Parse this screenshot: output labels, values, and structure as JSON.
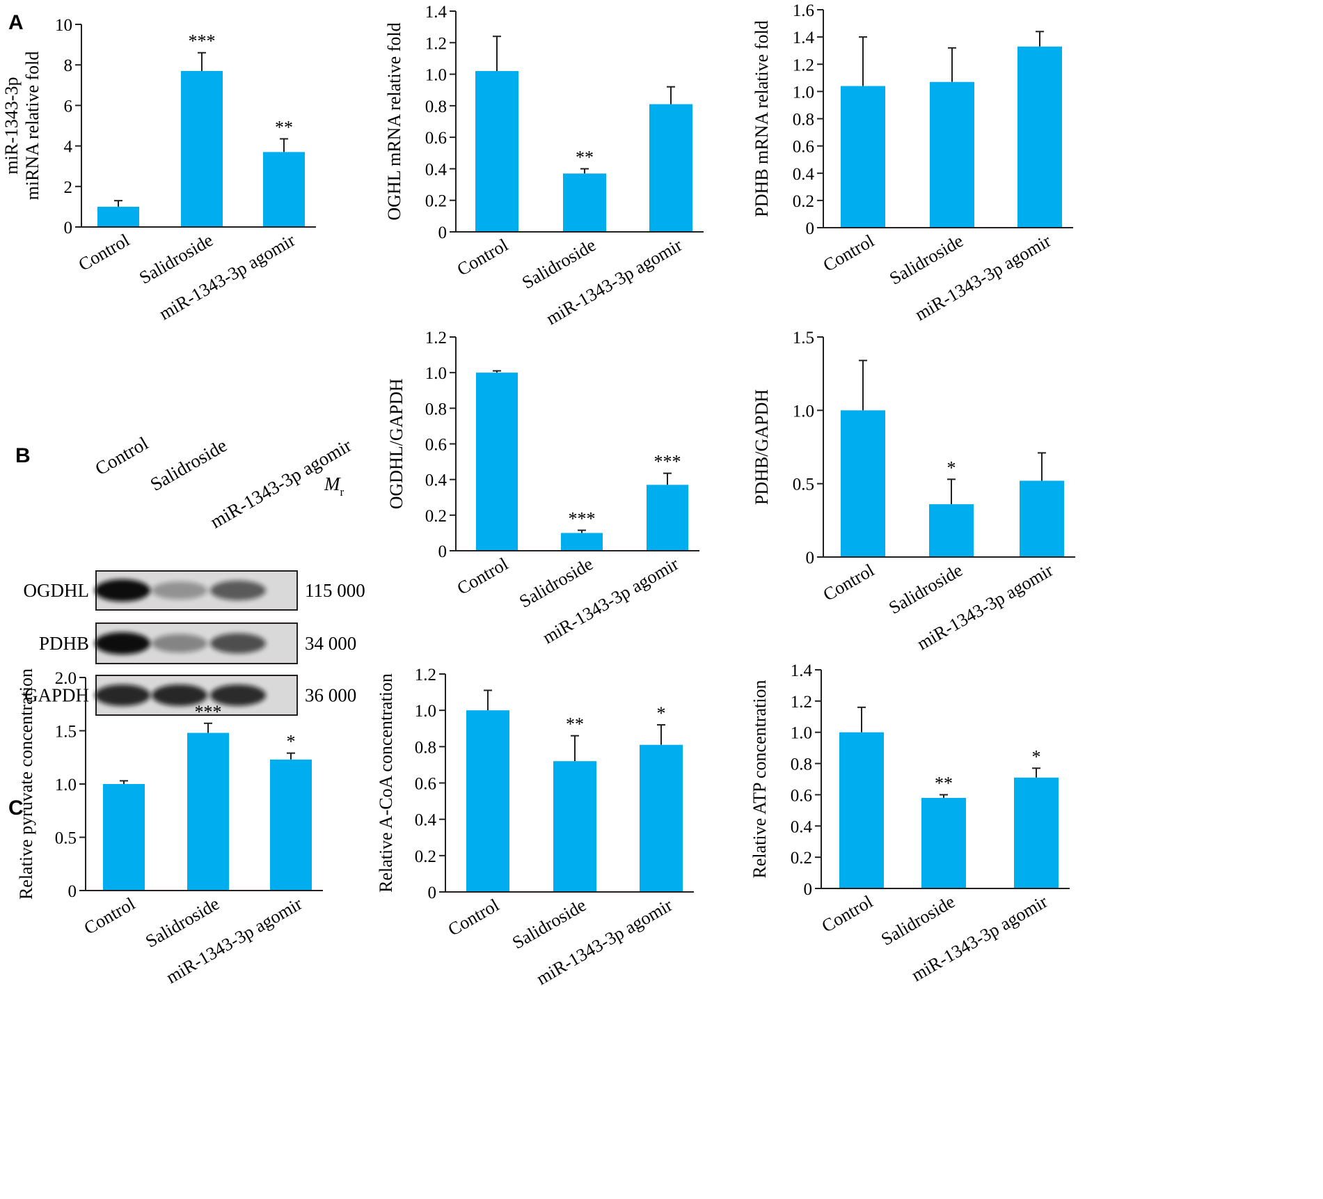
{
  "colors": {
    "bar": "#00aeef",
    "axis": "#231f20",
    "band": "#111111",
    "blot_bg": "#d9d9d9"
  },
  "panels": {
    "a": "A",
    "b": "B",
    "c": "C"
  },
  "western_blot": {
    "lanes": [
      "Control",
      "Salidroside",
      "miR-1343-3p agomir"
    ],
    "mr_label": {
      "main": "M",
      "sub": "r"
    },
    "rows": [
      {
        "protein": "OGDHL",
        "mr": "115 000",
        "intensity": [
          1.0,
          0.22,
          0.55
        ]
      },
      {
        "protein": "PDHB",
        "mr": "34 000",
        "intensity": [
          1.0,
          0.3,
          0.62
        ]
      },
      {
        "protein": "GAPDH",
        "mr": "36 000",
        "intensity": [
          0.85,
          0.85,
          0.82
        ]
      }
    ]
  },
  "chart_data": [
    {
      "panel": "A",
      "type": "bar",
      "ylabel": [
        "miR-1343-3p",
        "miRNA relative fold"
      ],
      "categories": [
        "Control",
        "Salidroside",
        "miR-1343-3p agomir"
      ],
      "values": [
        1.0,
        7.7,
        3.7
      ],
      "errors": [
        0.3,
        0.9,
        0.65
      ],
      "significance": [
        "",
        "***",
        "**"
      ],
      "ylim": [
        0,
        10
      ],
      "yticks": [
        "0",
        "2",
        "4",
        "6",
        "8",
        "10"
      ]
    },
    {
      "panel": "A",
      "type": "bar",
      "ylabel": [
        "OGHL mRNA relative fold"
      ],
      "categories": [
        "Control",
        "Salidroside",
        "miR-1343-3p agomir"
      ],
      "values": [
        1.02,
        0.37,
        0.81
      ],
      "errors": [
        0.22,
        0.03,
        0.11
      ],
      "significance": [
        "",
        "**",
        ""
      ],
      "ylim": [
        0,
        1.4
      ],
      "yticks": [
        "0",
        "0.2",
        "0.4",
        "0.6",
        "0.8",
        "1.0",
        "1.2",
        "1.4"
      ]
    },
    {
      "panel": "A",
      "type": "bar",
      "ylabel": [
        "PDHB mRNA relative fold"
      ],
      "categories": [
        "Control",
        "Salidroside",
        "miR-1343-3p agomir"
      ],
      "values": [
        1.04,
        1.07,
        1.33
      ],
      "errors": [
        0.36,
        0.25,
        0.11
      ],
      "significance": [
        "",
        "",
        ""
      ],
      "ylim": [
        0,
        1.6
      ],
      "yticks": [
        "0",
        "0.2",
        "0.4",
        "0.6",
        "0.8",
        "1.0",
        "1.2",
        "1.4",
        "1.6"
      ]
    },
    {
      "panel": "B",
      "type": "bar",
      "ylabel": [
        "OGDHL/GAPDH"
      ],
      "categories": [
        "Control",
        "Salidroside",
        "miR-1343-3p agomir"
      ],
      "values": [
        1.0,
        0.1,
        0.37
      ],
      "errors": [
        0.01,
        0.015,
        0.065
      ],
      "significance": [
        "",
        "***",
        "***"
      ],
      "ylim": [
        0,
        1.2
      ],
      "yticks": [
        "0",
        "0.2",
        "0.4",
        "0.6",
        "0.8",
        "1.0",
        "1.2"
      ]
    },
    {
      "panel": "B",
      "type": "bar",
      "ylabel": [
        "PDHB/GAPDH"
      ],
      "categories": [
        "Control",
        "Salidroside",
        "miR-1343-3p agomir"
      ],
      "values": [
        1.0,
        0.36,
        0.52
      ],
      "errors": [
        0.34,
        0.17,
        0.19
      ],
      "significance": [
        "",
        "*",
        ""
      ],
      "ylim": [
        0,
        1.5
      ],
      "yticks": [
        "0",
        "0.5",
        "1.0",
        "1.5"
      ]
    },
    {
      "panel": "C",
      "type": "bar",
      "ylabel": [
        "Relative pyruvate concentration"
      ],
      "categories": [
        "Control",
        "Salidroside",
        "miR-1343-3p agomir"
      ],
      "values": [
        1.0,
        1.48,
        1.23
      ],
      "errors": [
        0.03,
        0.09,
        0.06
      ],
      "significance": [
        "",
        "***",
        "*"
      ],
      "ylim": [
        0,
        2.0
      ],
      "yticks": [
        "0",
        "0.5",
        "1.0",
        "1.5",
        "2.0"
      ]
    },
    {
      "panel": "C",
      "type": "bar",
      "ylabel": [
        "Relative A-CoA concentration"
      ],
      "categories": [
        "Control",
        "Salidroside",
        "miR-1343-3p agomir"
      ],
      "values": [
        1.0,
        0.72,
        0.81
      ],
      "errors": [
        0.11,
        0.14,
        0.11
      ],
      "significance": [
        "",
        "**",
        "*"
      ],
      "ylim": [
        0,
        1.2
      ],
      "yticks": [
        "0",
        "0.2",
        "0.4",
        "0.6",
        "0.8",
        "1.0",
        "1.2"
      ]
    },
    {
      "panel": "C",
      "type": "bar",
      "ylabel": [
        "Relative ATP concentration"
      ],
      "categories": [
        "Control",
        "Salidroside",
        "miR-1343-3p agomir"
      ],
      "values": [
        1.0,
        0.58,
        0.71
      ],
      "errors": [
        0.16,
        0.02,
        0.06
      ],
      "significance": [
        "",
        "**",
        "*"
      ],
      "ylim": [
        0,
        1.4
      ],
      "yticks": [
        "0",
        "0.2",
        "0.4",
        "0.6",
        "0.8",
        "1.0",
        "1.2",
        "1.4"
      ]
    }
  ]
}
